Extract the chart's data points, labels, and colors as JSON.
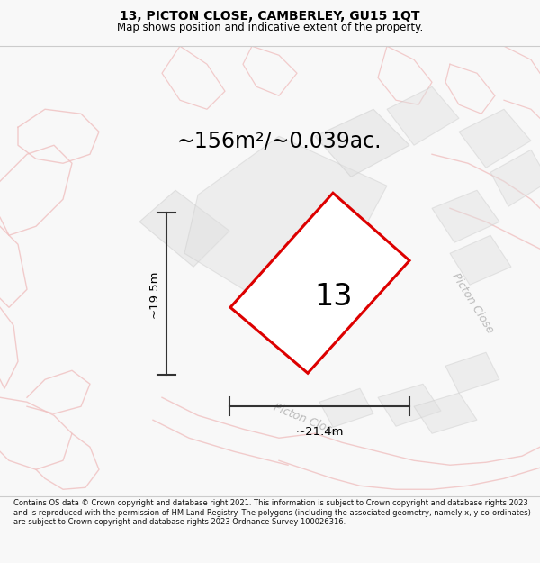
{
  "title": "13, PICTON CLOSE, CAMBERLEY, GU15 1QT",
  "subtitle": "Map shows position and indicative extent of the property.",
  "area_text": "~156m²/~0.039ac.",
  "width_text": "~21.4m",
  "height_text": "~19.5m",
  "plot_number": "13",
  "background_color": "#f8f8f8",
  "map_bg_color": "#f8f4f4",
  "footer_text": "Contains OS data © Crown copyright and database right 2021. This information is subject to Crown copyright and database rights 2023 and is reproduced with the permission of HM Land Registry. The polygons (including the associated geometry, namely x, y co-ordinates) are subject to Crown copyright and database rights 2023 Ordnance Survey 100026316.",
  "road_color": "#f0c0c0",
  "gray_block_color": "#e0e0e0",
  "gray_edge_color": "#cccccc",
  "dim_line_color": "#333333",
  "road_label_color": "#bbbbbb",
  "title_fontsize": 10,
  "subtitle_fontsize": 8.5,
  "area_fontsize": 17,
  "plot_num_fontsize": 24,
  "dim_fontsize": 9.5,
  "road_label_fontsize": 9
}
